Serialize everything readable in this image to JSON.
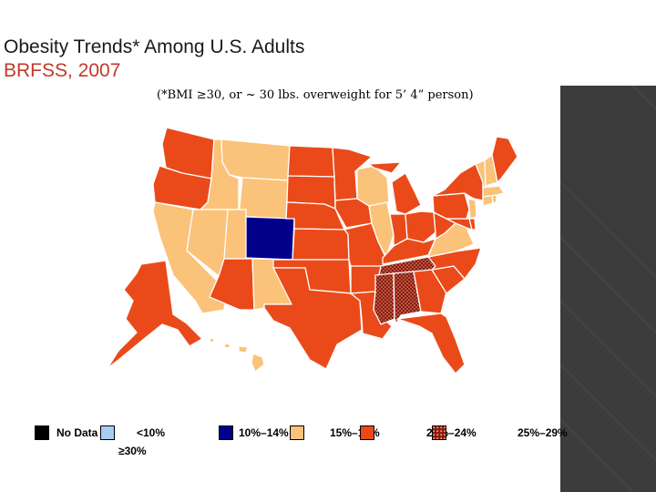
{
  "title": {
    "line1": "Obesity Trends* Among U.S. Adults",
    "line2": "BRFSS, 2007",
    "subtitle": "(*BMI ≥30, or ~ 30 lbs. overweight for 5’ 4” person)"
  },
  "colors": {
    "no_data": "#000000",
    "lt10": "#a8cdf0",
    "c10_14": "#00008b",
    "c15_19": "#fbc27a",
    "c20_24": "#ea4a1a",
    "c25_29": "#8b1a0a",
    "c30plus": "#ffffff",
    "title_red": "#c0392b"
  },
  "legend": [
    {
      "key": "no_data",
      "label": "No Data"
    },
    {
      "key": "lt10",
      "label": "<10%"
    },
    {
      "key": "c10_14",
      "label": "10%–14%"
    },
    {
      "key": "c15_19",
      "label": "15%–19%"
    },
    {
      "key": "c20_24",
      "label": "20%–24%"
    },
    {
      "key": "c25_29",
      "label": "25%–29%"
    },
    {
      "key": "c30plus",
      "label": "≥30%"
    }
  ],
  "states": {
    "c10_14": [
      "CO"
    ],
    "c15_19": [
      "MT",
      "ID",
      "WY",
      "UT",
      "NV",
      "CA",
      "NM",
      "WI",
      "IL",
      "VA",
      "NH",
      "VT",
      "MA",
      "CT",
      "NJ",
      "RI",
      "HI"
    ],
    "c20_24": [
      "WA",
      "OR",
      "AZ",
      "TX",
      "ND",
      "SD",
      "NE",
      "KS",
      "OK",
      "MN",
      "IA",
      "MO",
      "AR",
      "LA",
      "MI",
      "IN",
      "OH",
      "KY",
      "GA",
      "FL",
      "SC",
      "NC",
      "WV",
      "PA",
      "NY",
      "ME",
      "DE",
      "MD",
      "AK"
    ],
    "c25_29": [
      "TN",
      "MS",
      "AL"
    ]
  }
}
